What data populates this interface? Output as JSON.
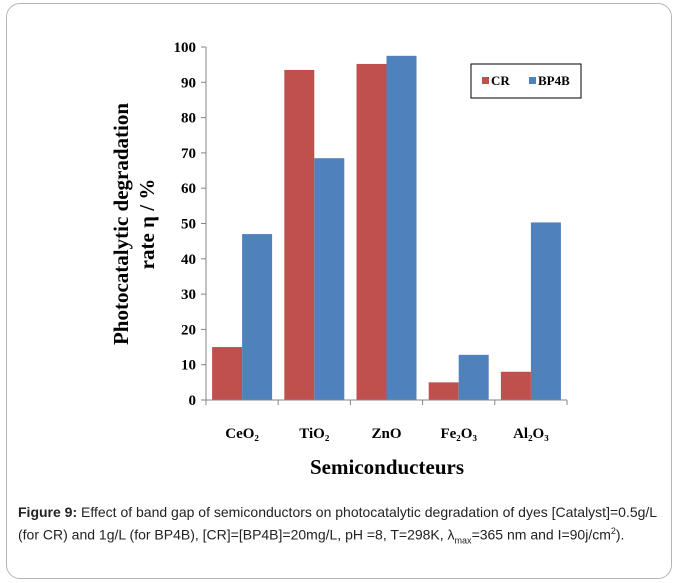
{
  "chart_data": {
    "type": "bar",
    "categories": [
      "CeO₂",
      "TiO₂",
      "ZnO",
      "Fe₂O₃",
      "Al₂O₃"
    ],
    "series": [
      {
        "name": "CR",
        "color": "#c0504d",
        "values": [
          15,
          93.5,
          95.2,
          5,
          8
        ]
      },
      {
        "name": "BP4B",
        "color": "#4f81bd",
        "values": [
          47,
          68.5,
          97.5,
          12.8,
          50.3
        ]
      }
    ],
    "title": "",
    "xlabel": "Semiconducteurs",
    "ylabel_line1": "Photocatalytic degradation",
    "ylabel_line2": "rate η / %",
    "ylim": [
      0,
      100
    ],
    "yticks": [
      "0",
      "10",
      "20",
      "30",
      "40",
      "50",
      "60",
      "70",
      "80",
      "90",
      "100"
    ],
    "grid": false,
    "legend_position": "top-right"
  },
  "caption": {
    "label": "Figure 9:",
    "text_1": " Effect of band gap of semiconductors on photocatalytic degradation of dyes [Catalyst]=0.5g/L (for CR) and 1g/L (for BP4B), [CR]=[BP4B]=20mg/L, pH =8, T=298K, λ",
    "sub_max": "max",
    "text_2": "=365 nm and I=90j/cm",
    "sup_2": "2",
    "text_3": ")."
  }
}
